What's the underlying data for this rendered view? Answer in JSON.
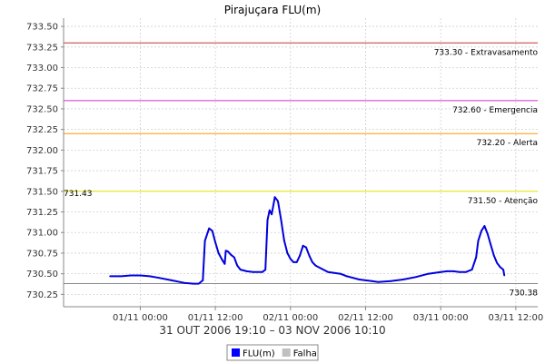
{
  "chart_data": {
    "type": "line",
    "title": "Pirajuçara FLU(m)",
    "subtitle": "31 OUT 2006 19:10 – 03 NOV 2006 10:10",
    "ylim": [
      730.1,
      733.6
    ],
    "yticks": [
      730.25,
      730.5,
      730.75,
      731.0,
      731.25,
      731.5,
      731.75,
      732.0,
      732.25,
      732.5,
      732.75,
      733.0,
      733.25,
      733.5
    ],
    "ytick_labels": [
      "730.25",
      "730.50",
      "730.75",
      "731.00",
      "731.25",
      "731.50",
      "731.75",
      "732.00",
      "732.25",
      "732.50",
      "732.75",
      "733.00",
      "733.25",
      "733.50"
    ],
    "xlim": [
      "2006-10-31T11:45",
      "2006-11-03T15:30"
    ],
    "xticks": [
      "2006-11-01T00:00",
      "2006-11-01T12:00",
      "2006-11-02T00:00",
      "2006-11-02T12:00",
      "2006-11-03T00:00",
      "2006-11-03T12:00"
    ],
    "xtick_labels": [
      "01/11 00:00",
      "01/11 12:00",
      "02/11 00:00",
      "02/11 12:00",
      "03/11 00:00",
      "03/11 12:00"
    ],
    "grid": true,
    "thresholds": [
      {
        "value": 733.3,
        "label": "733.30 - Extravasamento",
        "color": "#cc3333"
      },
      {
        "value": 732.6,
        "label": "732.60 - Emergencia",
        "color": "#cc33cc"
      },
      {
        "value": 732.2,
        "label": "732.20 - Alerta",
        "color": "#ff9900"
      },
      {
        "value": 731.5,
        "label": "731.50 - Atenção",
        "color": "#e6e600"
      },
      {
        "value": 730.38,
        "label": "730.38",
        "color": "#888888"
      }
    ],
    "max_marker": {
      "value": 731.43,
      "label": "731.43"
    },
    "series": [
      {
        "name": "FLU(m)",
        "color": "#0000dd",
        "points": [
          [
            "2006-10-31T19:10",
            730.47
          ],
          [
            "2006-10-31T21:00",
            730.47
          ],
          [
            "2006-10-31T22:30",
            730.48
          ],
          [
            "2006-11-01T00:00",
            730.48
          ],
          [
            "2006-11-01T01:30",
            730.47
          ],
          [
            "2006-11-01T03:00",
            730.45
          ],
          [
            "2006-11-01T05:00",
            730.42
          ],
          [
            "2006-11-01T07:00",
            730.39
          ],
          [
            "2006-11-01T08:30",
            730.38
          ],
          [
            "2006-11-01T09:20",
            730.38
          ],
          [
            "2006-11-01T10:00",
            730.42
          ],
          [
            "2006-11-01T10:20",
            730.9
          ],
          [
            "2006-11-01T11:00",
            731.05
          ],
          [
            "2006-11-01T11:30",
            731.02
          ],
          [
            "2006-11-01T12:00",
            730.88
          ],
          [
            "2006-11-01T12:30",
            730.75
          ],
          [
            "2006-11-01T13:00",
            730.68
          ],
          [
            "2006-11-01T13:30",
            730.62
          ],
          [
            "2006-11-01T13:40",
            730.78
          ],
          [
            "2006-11-01T14:00",
            730.77
          ],
          [
            "2006-11-01T14:30",
            730.73
          ],
          [
            "2006-11-01T15:00",
            730.7
          ],
          [
            "2006-11-01T15:30",
            730.6
          ],
          [
            "2006-11-01T16:00",
            730.55
          ],
          [
            "2006-11-01T17:00",
            730.53
          ],
          [
            "2006-11-01T18:00",
            730.52
          ],
          [
            "2006-11-01T19:30",
            730.52
          ],
          [
            "2006-11-01T20:00",
            730.55
          ],
          [
            "2006-11-01T20:20",
            731.15
          ],
          [
            "2006-11-01T20:40",
            731.27
          ],
          [
            "2006-11-01T21:00",
            731.22
          ],
          [
            "2006-11-01T21:30",
            731.43
          ],
          [
            "2006-11-01T22:00",
            731.38
          ],
          [
            "2006-11-01T22:30",
            731.15
          ],
          [
            "2006-11-01T23:00",
            730.9
          ],
          [
            "2006-11-01T23:30",
            730.75
          ],
          [
            "2006-11-02T00:00",
            730.68
          ],
          [
            "2006-11-02T00:30",
            730.64
          ],
          [
            "2006-11-02T01:00",
            730.64
          ],
          [
            "2006-11-02T01:30",
            730.72
          ],
          [
            "2006-11-02T02:00",
            730.84
          ],
          [
            "2006-11-02T02:30",
            730.82
          ],
          [
            "2006-11-02T03:00",
            730.72
          ],
          [
            "2006-11-02T03:30",
            730.64
          ],
          [
            "2006-11-02T04:00",
            730.6
          ],
          [
            "2006-11-02T05:00",
            730.56
          ],
          [
            "2006-11-02T06:00",
            730.52
          ],
          [
            "2006-11-02T08:00",
            730.5
          ],
          [
            "2006-11-02T09:00",
            730.47
          ],
          [
            "2006-11-02T10:00",
            730.45
          ],
          [
            "2006-11-02T11:00",
            730.43
          ],
          [
            "2006-11-02T12:00",
            730.42
          ],
          [
            "2006-11-02T13:00",
            730.41
          ],
          [
            "2006-11-02T14:00",
            730.4
          ],
          [
            "2006-11-02T16:00",
            730.41
          ],
          [
            "2006-11-02T18:00",
            730.43
          ],
          [
            "2006-11-02T20:00",
            730.46
          ],
          [
            "2006-11-02T22:00",
            730.5
          ],
          [
            "2006-11-03T00:00",
            730.52
          ],
          [
            "2006-11-03T01:00",
            730.53
          ],
          [
            "2006-11-03T02:00",
            730.53
          ],
          [
            "2006-11-03T03:00",
            730.52
          ],
          [
            "2006-11-03T04:00",
            730.52
          ],
          [
            "2006-11-03T05:00",
            730.55
          ],
          [
            "2006-11-03T05:40",
            730.7
          ],
          [
            "2006-11-03T06:00",
            730.9
          ],
          [
            "2006-11-03T06:30",
            731.02
          ],
          [
            "2006-11-03T07:00",
            731.08
          ],
          [
            "2006-11-03T07:30",
            730.98
          ],
          [
            "2006-11-03T08:00",
            730.85
          ],
          [
            "2006-11-03T08:30",
            730.72
          ],
          [
            "2006-11-03T09:00",
            730.63
          ],
          [
            "2006-11-03T09:30",
            730.58
          ],
          [
            "2006-11-03T10:00",
            730.55
          ],
          [
            "2006-11-03T10:10",
            730.48
          ]
        ]
      }
    ],
    "legend": {
      "placement": "bottom",
      "items": [
        {
          "label": "FLU(m)",
          "color": "#0000ff"
        },
        {
          "label": "Falha",
          "color": "#c0c0c0"
        }
      ]
    }
  }
}
